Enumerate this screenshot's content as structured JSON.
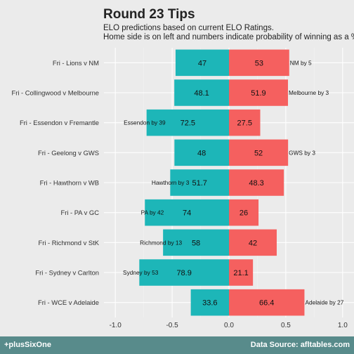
{
  "title": "Round 23 Tips",
  "subtitle_lines": [
    "ELO predictions based on current ELO Ratings.",
    "Home side is on left and numbers indicate probability of winning as a %"
  ],
  "footer": {
    "left": "+plusSixOne",
    "right": "Data Source: afltables.com"
  },
  "colors": {
    "home": "#1db6b8",
    "away": "#f5605f",
    "background": "#ebebeb",
    "footer": "#588b8b"
  },
  "chart_data": {
    "type": "bar",
    "orientation": "horizontal",
    "diverging": true,
    "categories": [
      "Fri - Lions v NM",
      "Fri - Collingwood v Melbourne",
      "Fri - Essendon v Fremantle",
      "Fri - Geelong v GWS",
      "Fri - Hawthorn v WB",
      "Fri - PA v GC",
      "Fri - Richmond v StK",
      "Fri - Sydney v Carlton",
      "Fri - WCE v Adelaide"
    ],
    "series": [
      {
        "values": [
          47,
          48.1,
          72.5,
          48,
          51.7,
          74,
          58,
          78.9,
          33.6
        ]
      },
      {
        "values": [
          53,
          51.9,
          27.5,
          52,
          48.3,
          26,
          42,
          21.1,
          66.4
        ]
      }
    ],
    "margin_labels": [
      {
        "text": "NM by 5",
        "side": "right"
      },
      {
        "text": "Melbourne by 3",
        "side": "right"
      },
      {
        "text": "Essendon by 39",
        "side": "left"
      },
      {
        "text": "GWS by 3",
        "side": "right"
      },
      {
        "text": "Hawthorn by 3",
        "side": "left"
      },
      {
        "text": "PA by 42",
        "side": "left"
      },
      {
        "text": "Richmond by 13",
        "side": "left"
      },
      {
        "text": "Sydney by 53",
        "side": "left"
      },
      {
        "text": "Adelaide by 27",
        "side": "right"
      }
    ],
    "xticks": [
      "-1.0",
      "-0.5",
      "0.0",
      "0.5",
      "1.0"
    ],
    "xtick_values": [
      -1.0,
      -0.5,
      0.0,
      0.5,
      1.0
    ],
    "xlim": [
      -1.1,
      1.1
    ],
    "grid": true
  }
}
